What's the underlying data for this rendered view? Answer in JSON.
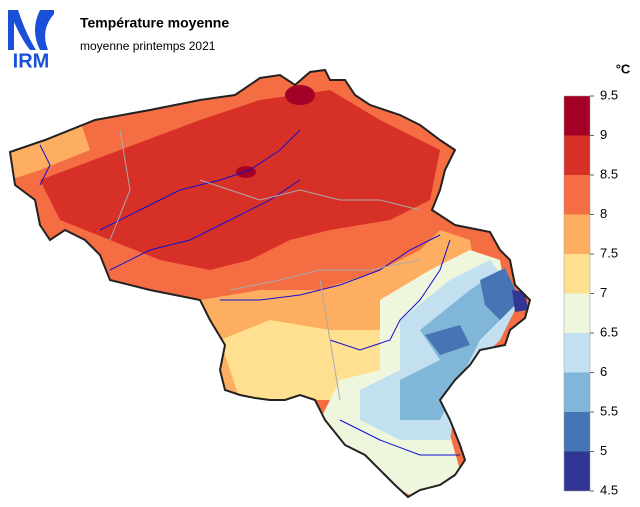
{
  "logo": "IRM",
  "title": "Température moyenne",
  "subtitle": "moyenne printemps 2021",
  "legend": {
    "unit": "°C",
    "ticks": [
      9.5,
      9,
      8.5,
      8,
      7.5,
      7,
      6.5,
      6,
      5.5,
      5,
      4.5
    ],
    "colors": [
      "#a50026",
      "#d73027",
      "#f46d43",
      "#fdae61",
      "#fee090",
      "#eef6dd",
      "#c2e0ef",
      "#80b6d8",
      "#4575b4",
      "#313695"
    ]
  }
}
